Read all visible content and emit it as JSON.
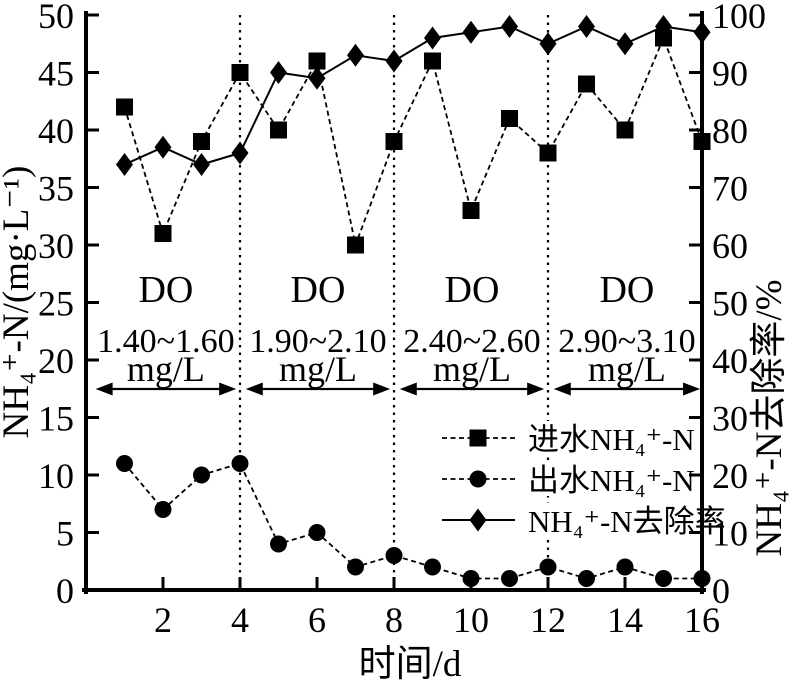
{
  "figure": {
    "background": "#ffffff",
    "ink": "#000000"
  },
  "chart_data": {
    "type": "line",
    "title": "",
    "xlabel": "时间/d",
    "x_range": [
      0,
      16
    ],
    "x_ticks": [
      2,
      4,
      6,
      8,
      10,
      12,
      14,
      16
    ],
    "left_axis": {
      "label": "NH₄⁺-N/(mg·L⁻¹)",
      "range": [
        0,
        50
      ],
      "ticks": [
        0,
        5,
        10,
        15,
        20,
        25,
        30,
        35,
        40,
        45,
        50
      ]
    },
    "right_axis": {
      "label": "NH₄⁺-N去除率/%",
      "range": [
        0,
        100
      ],
      "ticks": [
        0,
        10,
        20,
        30,
        40,
        50,
        60,
        70,
        80,
        90,
        100
      ]
    },
    "x": [
      1,
      2,
      3,
      4,
      5,
      6,
      7,
      8,
      9,
      10,
      11,
      12,
      13,
      14,
      15,
      16
    ],
    "series": [
      {
        "name": "进水NH₄⁺-N",
        "marker": "square",
        "axis": "left",
        "linestyle": "dashed",
        "values": [
          42,
          31,
          39,
          45,
          40,
          46,
          30,
          39,
          46,
          33,
          41,
          38,
          44,
          40,
          48,
          39
        ]
      },
      {
        "name": "出水NH₄⁺-N",
        "marker": "circle",
        "axis": "left",
        "linestyle": "dashed",
        "values": [
          11,
          7,
          10,
          11,
          4,
          5,
          2,
          3,
          2,
          1,
          1,
          2,
          1,
          2,
          1,
          1
        ]
      },
      {
        "name": "NH₄⁺-N去除率",
        "marker": "diamond",
        "axis": "right",
        "linestyle": "solid",
        "values": [
          74,
          77,
          74,
          76,
          90,
          89,
          93,
          92,
          96,
          97,
          98,
          95,
          98,
          95,
          98,
          97
        ]
      }
    ],
    "separators_x": [
      4,
      8,
      12
    ],
    "regions": [
      {
        "title": "DO",
        "range": "1.40~1.60",
        "unit": "mg/L",
        "from": 0.25,
        "to": 3.9
      },
      {
        "title": "DO",
        "range": "1.90~2.10",
        "unit": "mg/L",
        "from": 4.15,
        "to": 7.9
      },
      {
        "title": "DO",
        "range": "2.40~2.60",
        "unit": "mg/L",
        "from": 8.15,
        "to": 11.9
      },
      {
        "title": "DO",
        "range": "2.90~3.10",
        "unit": "mg/L",
        "from": 12.15,
        "to": 15.95
      }
    ],
    "legend_position": "inside lower right",
    "grid": "off"
  }
}
